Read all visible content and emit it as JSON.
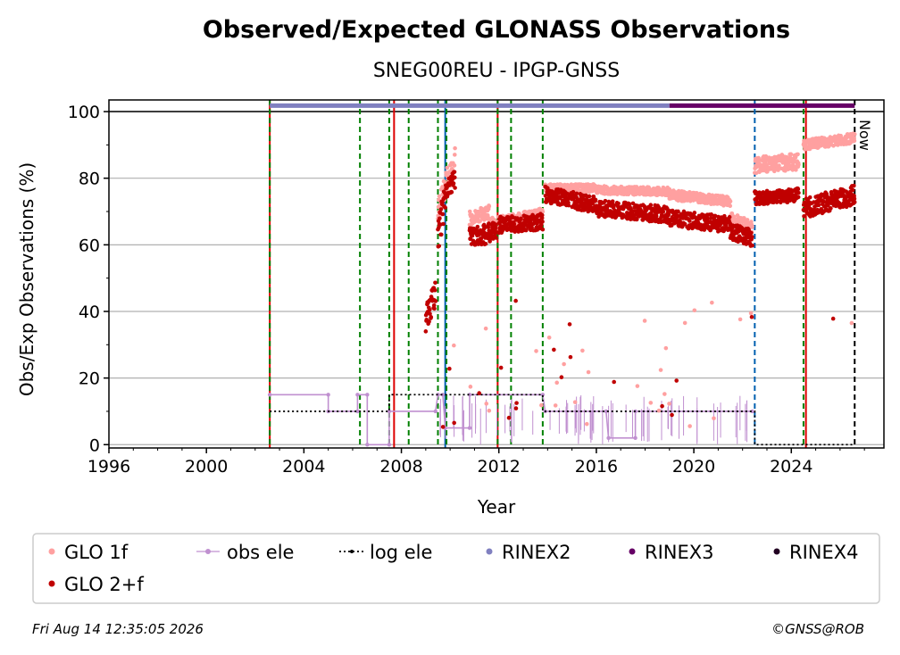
{
  "chart_data": {
    "type": "scatter",
    "title": "Observed/Expected GLONASS Observations",
    "subtitle": "SNEG00REU - IPGP-GNSS",
    "xlabel": "Year",
    "ylabel": "Obs/Exp Observations (%)",
    "xlim": [
      1996,
      2027.8
    ],
    "ylim": [
      -1,
      103.5
    ],
    "x_ticks": [
      1996,
      2000,
      2004,
      2008,
      2012,
      2016,
      2020,
      2024
    ],
    "y_ticks": [
      0,
      20,
      40,
      60,
      80,
      100
    ],
    "grid": "horizontal",
    "legend_position": "bottom",
    "now_label": "Now",
    "now_x": 2026.6,
    "colors": {
      "glo1f": "#ffa0a0",
      "glo2f": "#c00000",
      "obs_ele": "#c090d0",
      "log_ele": "#000000",
      "rinex2": "#8080c0",
      "rinex3": "#660066",
      "rinex4": "#220022",
      "event_red": "#dd0000",
      "event_green": "#008000",
      "event_blue": "#0060b0",
      "grid": "#b0b0b0"
    },
    "legend": [
      {
        "key": "glo1f",
        "label": "GLO 1f",
        "style": "dot"
      },
      {
        "key": "obs_ele",
        "label": "obs ele",
        "style": "line-dot"
      },
      {
        "key": "log_ele",
        "label": "log ele",
        "style": "dotted-line"
      },
      {
        "key": "rinex2",
        "label": "RINEX2",
        "style": "dot"
      },
      {
        "key": "rinex3",
        "label": "RINEX3",
        "style": "dot"
      },
      {
        "key": "rinex4",
        "label": "RINEX4",
        "style": "dot"
      },
      {
        "key": "glo2f",
        "label": "GLO 2+f",
        "style": "dot"
      }
    ],
    "series": [
      {
        "name": "GLO 1f",
        "segments": [
          {
            "x": [
              2009.5,
              2009.9
            ],
            "y": [
              70,
              80
            ],
            "noise": 4
          },
          {
            "x": [
              2009.9,
              2010.2
            ],
            "y": [
              78,
              86
            ],
            "noise": 4
          },
          {
            "x": [
              2010.8,
              2011.6
            ],
            "y": [
              68,
              70
            ],
            "noise": 2
          },
          {
            "x": [
              2011.6,
              2013.8
            ],
            "y": [
              66,
              69
            ],
            "noise": 2
          },
          {
            "x": [
              2013.9,
              2016.0
            ],
            "y": [
              77,
              77
            ],
            "noise": 1.2
          },
          {
            "x": [
              2016.0,
              2019.0
            ],
            "y": [
              76.5,
              76
            ],
            "noise": 1.2
          },
          {
            "x": [
              2019.0,
              2021.5
            ],
            "y": [
              75,
              73
            ],
            "noise": 1.5
          },
          {
            "x": [
              2021.5,
              2022.4
            ],
            "y": [
              68,
              65
            ],
            "noise": 2
          },
          {
            "x": [
              2022.5,
              2024.3
            ],
            "y": [
              84,
              85
            ],
            "noise": 2.5
          },
          {
            "x": [
              2024.5,
              2026.6
            ],
            "y": [
              90,
              92
            ],
            "noise": 1.5
          }
        ]
      },
      {
        "name": "GLO 2+f",
        "segments": [
          {
            "x": [
              2009.0,
              2009.4
            ],
            "y": [
              38,
              45
            ],
            "noise": 4
          },
          {
            "x": [
              2009.5,
              2009.8
            ],
            "y": [
              62,
              74
            ],
            "noise": 5
          },
          {
            "x": [
              2009.8,
              2010.2
            ],
            "y": [
              76,
              80
            ],
            "noise": 3
          },
          {
            "x": [
              2010.8,
              2011.9
            ],
            "y": [
              62,
              64
            ],
            "noise": 3
          },
          {
            "x": [
              2012.0,
              2013.8
            ],
            "y": [
              66,
              67
            ],
            "noise": 2.5
          },
          {
            "x": [
              2013.9,
              2016.0
            ],
            "y": [
              75,
              72
            ],
            "noise": 2.5
          },
          {
            "x": [
              2016.0,
              2019.0
            ],
            "y": [
              71,
              69
            ],
            "noise": 2.5
          },
          {
            "x": [
              2019.0,
              2021.5
            ],
            "y": [
              68,
              66
            ],
            "noise": 2.5
          },
          {
            "x": [
              2021.5,
              2022.4
            ],
            "y": [
              64,
              62
            ],
            "noise": 2.5
          },
          {
            "x": [
              2022.5,
              2024.3
            ],
            "y": [
              74,
              75
            ],
            "noise": 2
          },
          {
            "x": [
              2024.5,
              2026.6
            ],
            "y": [
              71,
              75
            ],
            "noise": 3
          }
        ]
      },
      {
        "name": "obs ele",
        "points": [
          [
            2002.6,
            15
          ],
          [
            2005.0,
            15
          ],
          [
            2005.0,
            10
          ],
          [
            2006.2,
            10
          ],
          [
            2006.2,
            15
          ],
          [
            2006.6,
            15
          ],
          [
            2006.6,
            0
          ],
          [
            2007.5,
            0
          ],
          [
            2007.5,
            10
          ],
          [
            2009.4,
            10
          ],
          [
            2009.5,
            15
          ],
          [
            2009.7,
            15
          ],
          [
            2009.8,
            5
          ],
          [
            2010.8,
            5
          ],
          [
            2010.8,
            15
          ],
          [
            2013.8,
            15
          ],
          [
            2013.9,
            10
          ],
          [
            2016.4,
            10
          ],
          [
            2016.5,
            2
          ],
          [
            2017.6,
            2
          ],
          [
            2017.6,
            10
          ],
          [
            2022.4,
            10
          ]
        ]
      },
      {
        "name": "log ele",
        "points": [
          [
            2002.6,
            10
          ],
          [
            2006.6,
            10
          ],
          [
            2007.5,
            10
          ],
          [
            2007.5,
            15
          ],
          [
            2013.8,
            15
          ],
          [
            2013.8,
            10
          ],
          [
            2022.5,
            10
          ],
          [
            2022.5,
            0
          ],
          [
            2026.6,
            0
          ]
        ]
      },
      {
        "name": "RINEX2",
        "x_start": 2002.6,
        "x_end": 2019.0,
        "y": 101.8
      },
      {
        "name": "RINEX3",
        "x_start": 2019.0,
        "x_end": 2026.6,
        "y": 101.8
      }
    ],
    "event_lines": [
      {
        "x": 2002.6,
        "color": "event_red",
        "style": "solid"
      },
      {
        "x": 2002.6,
        "color": "event_green",
        "style": "dashed"
      },
      {
        "x": 2006.3,
        "color": "event_green",
        "style": "dashed"
      },
      {
        "x": 2007.5,
        "color": "event_green",
        "style": "dashed"
      },
      {
        "x": 2007.7,
        "color": "event_red",
        "style": "solid"
      },
      {
        "x": 2008.3,
        "color": "event_green",
        "style": "dashed"
      },
      {
        "x": 2009.5,
        "color": "event_green",
        "style": "dashed"
      },
      {
        "x": 2009.8,
        "color": "event_blue",
        "style": "solid"
      },
      {
        "x": 2009.85,
        "color": "event_green",
        "style": "dashed"
      },
      {
        "x": 2011.95,
        "color": "event_red",
        "style": "solid"
      },
      {
        "x": 2011.95,
        "color": "event_green",
        "style": "dashed"
      },
      {
        "x": 2012.5,
        "color": "event_green",
        "style": "dashed"
      },
      {
        "x": 2013.8,
        "color": "event_green",
        "style": "dashed"
      },
      {
        "x": 2022.5,
        "color": "event_blue",
        "style": "dashed"
      },
      {
        "x": 2024.5,
        "color": "event_green",
        "style": "dashed"
      },
      {
        "x": 2024.6,
        "color": "event_red",
        "style": "solid"
      },
      {
        "x": 2026.6,
        "color": "log_ele",
        "style": "dashed"
      }
    ]
  },
  "footer": {
    "timestamp": "Fri Aug 14 12:35:05 2026",
    "credit": "©GNSS@ROB"
  }
}
